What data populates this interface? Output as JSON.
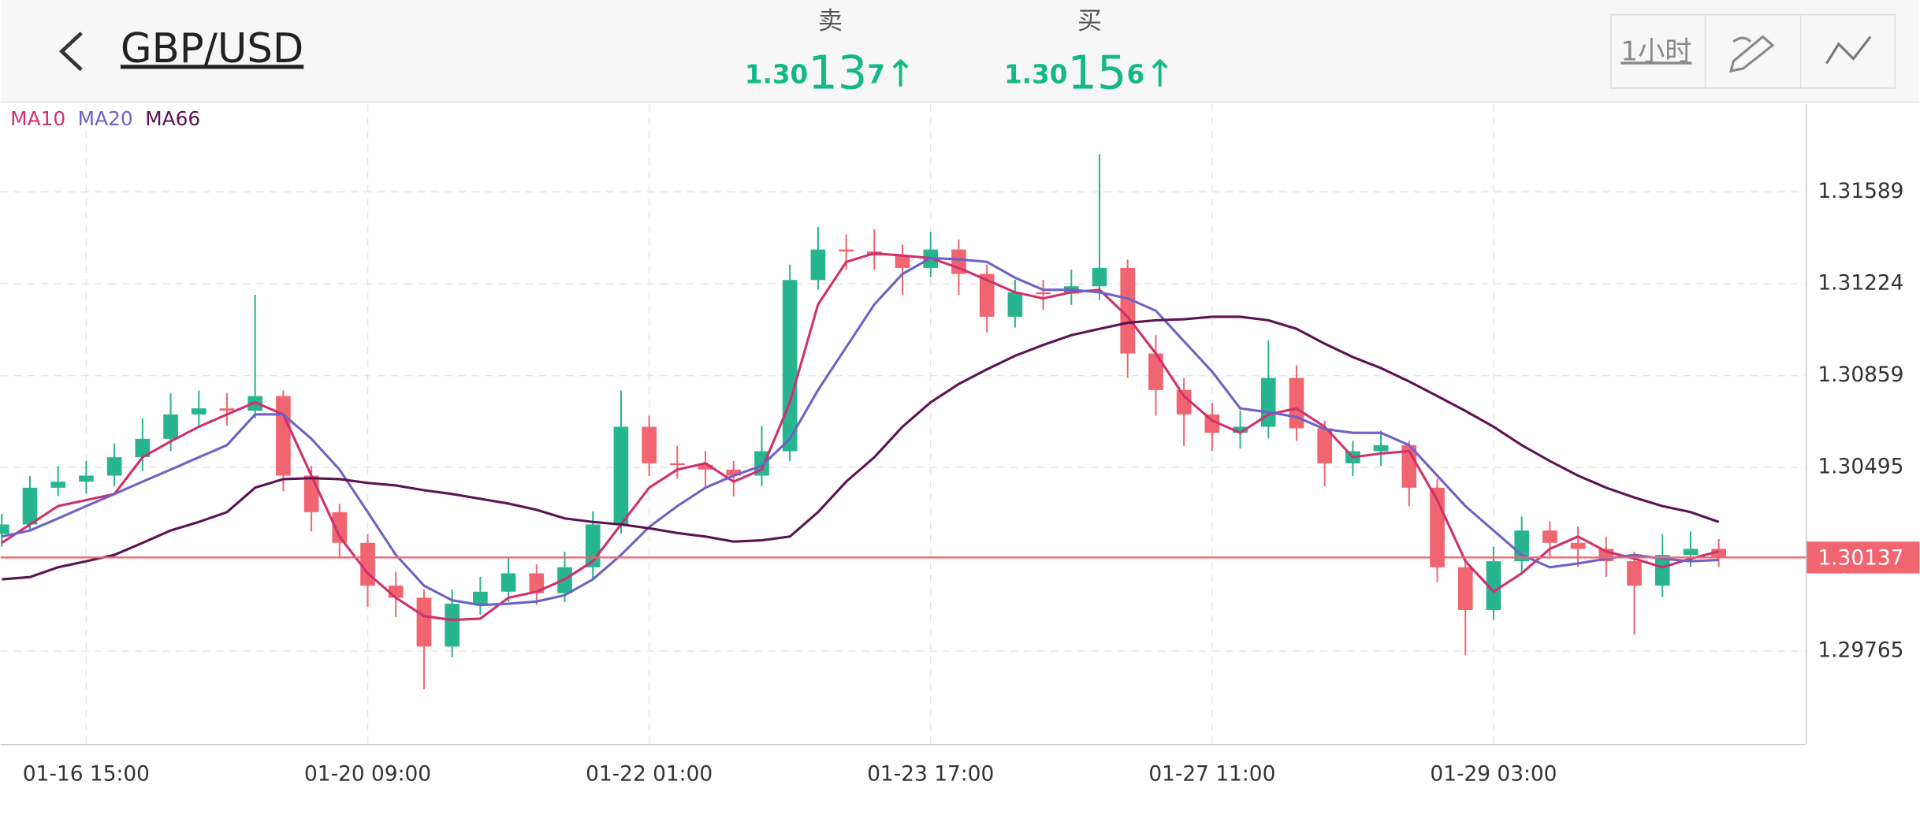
{
  "header": {
    "title": "GBP/USD",
    "sell": {
      "label": "卖",
      "prefix": "1.30",
      "big": "13",
      "suffix": "7",
      "arrow": "↑"
    },
    "buy": {
      "label": "买",
      "prefix": "1.30",
      "big": "15",
      "suffix": "6",
      "arrow": "↑"
    },
    "interval": "1小时"
  },
  "chart_data": {
    "type": "candlestick",
    "categories": [
      null,
      null,
      null,
      "01-16 15:00",
      null,
      null,
      null,
      null,
      null,
      null,
      null,
      null,
      null,
      "01-20 09:00",
      null,
      null,
      null,
      null,
      null,
      null,
      null,
      null,
      null,
      "01-22 01:00",
      null,
      null,
      null,
      null,
      null,
      null,
      null,
      null,
      null,
      "01-23 17:00",
      null,
      null,
      null,
      null,
      null,
      null,
      null,
      null,
      null,
      "01-27 11:00",
      null,
      null,
      null,
      null,
      null,
      null,
      null,
      null,
      null,
      "01-29 03:00",
      null,
      null,
      null,
      null,
      null,
      null,
      null,
      null
    ],
    "candles": [
      [
        1.3023,
        1.3031,
        1.3018,
        1.30268
      ],
      [
        1.30268,
        1.3046,
        1.3024,
        1.30414
      ],
      [
        1.30414,
        1.305,
        1.3038,
        1.30438
      ],
      [
        1.30438,
        1.3052,
        1.3039,
        1.30462
      ],
      [
        1.30462,
        1.3059,
        1.3042,
        1.30535
      ],
      [
        1.30535,
        1.3069,
        1.3048,
        1.30608
      ],
      [
        1.30608,
        1.3079,
        1.3056,
        1.30705
      ],
      [
        1.30705,
        1.308,
        1.3065,
        1.30729
      ],
      [
        1.30729,
        1.3079,
        1.3066,
        1.3072
      ],
      [
        1.3072,
        1.3118,
        1.3069,
        1.30778
      ],
      [
        1.30778,
        1.308,
        1.304,
        1.30462
      ],
      [
        1.30462,
        1.305,
        1.3024,
        1.30317
      ],
      [
        1.30317,
        1.3035,
        1.3014,
        1.30195
      ],
      [
        1.30195,
        1.3023,
        1.2994,
        1.30025
      ],
      [
        1.30025,
        1.3008,
        1.299,
        1.29977
      ],
      [
        1.29977,
        1.3001,
        1.29613,
        1.29783
      ],
      [
        1.29783,
        1.3001,
        1.2974,
        1.29953
      ],
      [
        1.29953,
        1.3006,
        1.2991,
        1.30001
      ],
      [
        1.30001,
        1.3014,
        1.2996,
        1.30074
      ],
      [
        1.30074,
        1.3011,
        1.2995,
        1.29995
      ],
      [
        1.29995,
        1.3016,
        1.2996,
        1.30098
      ],
      [
        1.30098,
        1.3032,
        1.3005,
        1.30268
      ],
      [
        1.30268,
        1.308,
        1.3023,
        1.30656
      ],
      [
        1.30656,
        1.307,
        1.3046,
        1.30511
      ],
      [
        1.30511,
        1.3058,
        1.3045,
        1.30505
      ],
      [
        1.30505,
        1.3056,
        1.3042,
        1.30486
      ],
      [
        1.30486,
        1.3052,
        1.3038,
        1.30462
      ],
      [
        1.30462,
        1.3066,
        1.3042,
        1.30559
      ],
      [
        1.30559,
        1.313,
        1.3052,
        1.31239
      ],
      [
        1.31239,
        1.3145,
        1.312,
        1.3136
      ],
      [
        1.3136,
        1.3142,
        1.3128,
        1.31352
      ],
      [
        1.31352,
        1.3144,
        1.3128,
        1.31336
      ],
      [
        1.31336,
        1.3138,
        1.3118,
        1.31287
      ],
      [
        1.31287,
        1.3143,
        1.3125,
        1.3136
      ],
      [
        1.3136,
        1.314,
        1.3118,
        1.31263
      ],
      [
        1.31263,
        1.313,
        1.3103,
        1.31093
      ],
      [
        1.31093,
        1.3124,
        1.3105,
        1.3119
      ],
      [
        1.3119,
        1.3124,
        1.3112,
        1.31185
      ],
      [
        1.31185,
        1.3128,
        1.3114,
        1.31214
      ],
      [
        1.31214,
        1.31738,
        1.3116,
        1.31287
      ],
      [
        1.31287,
        1.3132,
        1.3085,
        1.30947
      ],
      [
        1.30947,
        1.3102,
        1.307,
        1.30802
      ],
      [
        1.30802,
        1.3085,
        1.3058,
        1.30705
      ],
      [
        1.30705,
        1.3075,
        1.3056,
        1.30632
      ],
      [
        1.30632,
        1.3072,
        1.3057,
        1.30656
      ],
      [
        1.30656,
        1.31,
        1.3061,
        1.3085
      ],
      [
        1.3085,
        1.309,
        1.306,
        1.3065
      ],
      [
        1.3065,
        1.3068,
        1.3042,
        1.30511
      ],
      [
        1.30511,
        1.306,
        1.3046,
        1.30559
      ],
      [
        1.30559,
        1.3064,
        1.305,
        1.30583
      ],
      [
        1.30583,
        1.306,
        1.3034,
        1.30414
      ],
      [
        1.30414,
        1.3045,
        1.3004,
        1.30098
      ],
      [
        1.30098,
        1.3014,
        1.29749,
        1.29928
      ],
      [
        1.29928,
        1.3018,
        1.2989,
        1.30122
      ],
      [
        1.30122,
        1.303,
        1.3008,
        1.30244
      ],
      [
        1.30244,
        1.3028,
        1.3014,
        1.30195
      ],
      [
        1.30195,
        1.3026,
        1.301,
        1.30171
      ],
      [
        1.30171,
        1.3022,
        1.3006,
        1.30122
      ],
      [
        1.30122,
        1.3016,
        1.2983,
        1.30025
      ],
      [
        1.30025,
        1.3023,
        1.2998,
        1.30147
      ],
      [
        1.30147,
        1.3024,
        1.301,
        1.30171
      ],
      [
        1.30171,
        1.3021,
        1.301,
        1.30137
      ]
    ],
    "series": [
      {
        "name": "MA10",
        "color": "#d0306e",
        "values": [
          1.30195,
          1.30268,
          1.30341,
          1.30365,
          1.30389,
          1.30535,
          1.30598,
          1.30656,
          1.30705,
          1.30753,
          1.30705,
          1.30462,
          1.3022,
          1.30074,
          1.29977,
          1.29904,
          1.29889,
          1.29894,
          1.29977,
          1.30001,
          1.3005,
          1.30122,
          1.30268,
          1.30414,
          1.30486,
          1.30511,
          1.30438,
          1.30486,
          1.30753,
          1.31142,
          1.31311,
          1.31345,
          1.31336,
          1.31326,
          1.31287,
          1.31239,
          1.3119,
          1.31166,
          1.3119,
          1.312,
          1.31093,
          1.30947,
          1.30778,
          1.30681,
          1.30632,
          1.30705,
          1.30729,
          1.30656,
          1.30535,
          1.3055,
          1.30559,
          1.30365,
          1.30122,
          1.30001,
          1.30074,
          1.30171,
          1.3022,
          1.30161,
          1.30132,
          1.30098,
          1.30132,
          1.30161
        ]
      },
      {
        "name": "MA20",
        "color": "#6e62c4",
        "values": [
          1.3022,
          1.30244,
          1.30292,
          1.30341,
          1.30389,
          1.30438,
          1.30486,
          1.30535,
          1.30583,
          1.30705,
          1.30705,
          1.30608,
          1.30486,
          1.30317,
          1.30147,
          1.30025,
          1.29967,
          1.29948,
          1.29953,
          1.29962,
          1.29987,
          1.3005,
          1.30147,
          1.30258,
          1.30341,
          1.30414,
          1.30462,
          1.30501,
          1.30608,
          1.30802,
          1.30972,
          1.31142,
          1.31263,
          1.31326,
          1.31321,
          1.31311,
          1.31248,
          1.312,
          1.312,
          1.3119,
          1.31166,
          1.31117,
          1.30996,
          1.30875,
          1.30729,
          1.30714,
          1.30695,
          1.30647,
          1.30632,
          1.30632,
          1.30583,
          1.30462,
          1.30341,
          1.30244,
          1.30147,
          1.30098,
          1.30113,
          1.30132,
          1.30147,
          1.30132,
          1.30122,
          1.30127
        ]
      },
      {
        "name": "MA66",
        "color": "#5c1254",
        "values": [
          1.3005,
          1.30059,
          1.30098,
          1.30122,
          1.30147,
          1.30195,
          1.30244,
          1.30278,
          1.30317,
          1.30414,
          1.30448,
          1.30452,
          1.30448,
          1.30433,
          1.30423,
          1.30404,
          1.30389,
          1.3037,
          1.30351,
          1.30326,
          1.30292,
          1.30278,
          1.30268,
          1.30253,
          1.30234,
          1.3022,
          1.302,
          1.30205,
          1.3022,
          1.30317,
          1.30438,
          1.30535,
          1.30656,
          1.30753,
          1.30826,
          1.30884,
          1.30938,
          1.30981,
          1.3102,
          1.31045,
          1.31069,
          1.31079,
          1.31083,
          1.31093,
          1.31093,
          1.31079,
          1.31045,
          1.30986,
          1.30933,
          1.30889,
          1.30836,
          1.30778,
          1.30719,
          1.30656,
          1.30583,
          1.3052,
          1.30462,
          1.30414,
          1.30375,
          1.30341,
          1.30317,
          1.30278
        ]
      }
    ],
    "up_color": "#26b58e",
    "down_color": "#f0656f",
    "last_price": 1.30137,
    "last_price_color": "#f0656f",
    "ylim": [
      1.29396,
      1.31938
    ],
    "yticks": [
      1.29765,
      1.30495,
      1.30859,
      1.31224,
      1.31589
    ],
    "grid": true
  }
}
